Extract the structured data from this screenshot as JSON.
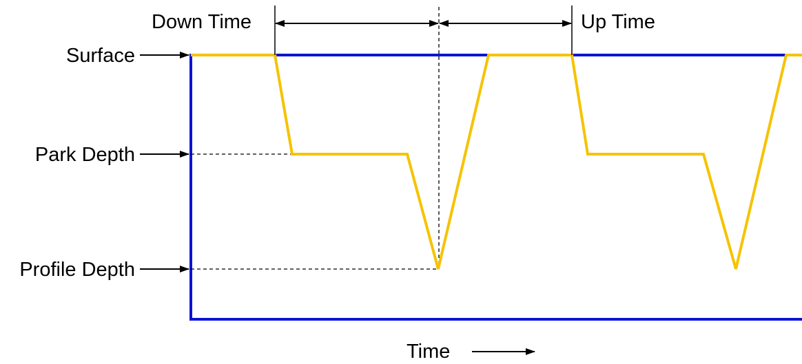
{
  "labels": {
    "surface": "Surface",
    "park_depth": "Park Depth",
    "profile_depth": "Profile Depth",
    "down_time": "Down Time",
    "up_time": "Up Time",
    "time": "Time"
  },
  "colors": {
    "frame": "#0a14d2",
    "profile": "#f5c300",
    "text": "#000000",
    "background": "#ffffff"
  }
}
